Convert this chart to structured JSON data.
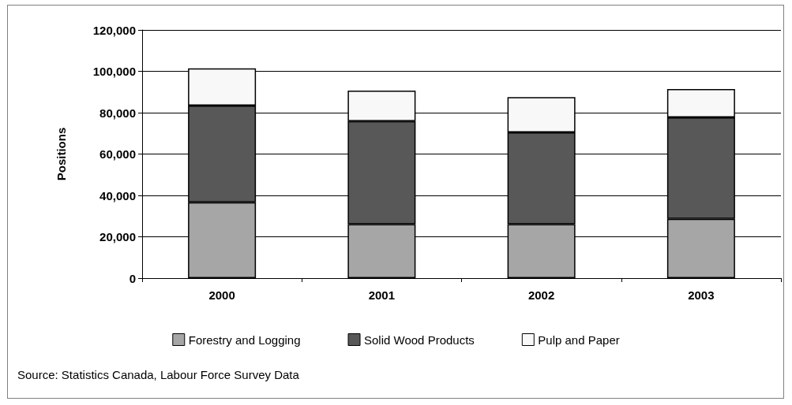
{
  "chart_data": {
    "type": "bar",
    "stacked": true,
    "ylabel": "Positions",
    "categories": [
      "2000",
      "2001",
      "2002",
      "2003"
    ],
    "series": [
      {
        "name": "Forestry and Logging",
        "color": "#a6a6a6",
        "values": [
          36700,
          26100,
          26100,
          28700
        ]
      },
      {
        "name": "Solid Wood Products",
        "color": "#585858",
        "values": [
          46700,
          49800,
          44400,
          49000
        ]
      },
      {
        "name": "Pulp and Paper",
        "color": "#f8f8f8",
        "values": [
          18000,
          14800,
          17000,
          13700
        ]
      }
    ],
    "ylim": [
      0,
      120000
    ],
    "yticks": [
      {
        "value": 0,
        "label": "0"
      },
      {
        "value": 20000,
        "label": "20,000"
      },
      {
        "value": 40000,
        "label": "40,000"
      },
      {
        "value": 60000,
        "label": "60,000"
      },
      {
        "value": 80000,
        "label": "80,000"
      },
      {
        "value": 100000,
        "label": "100,000"
      },
      {
        "value": 120000,
        "label": "120,000"
      }
    ],
    "grid": "y",
    "legend": "bottom",
    "annotations": [
      "Source: Statistics Canada, Labour Force Survey Data"
    ]
  }
}
